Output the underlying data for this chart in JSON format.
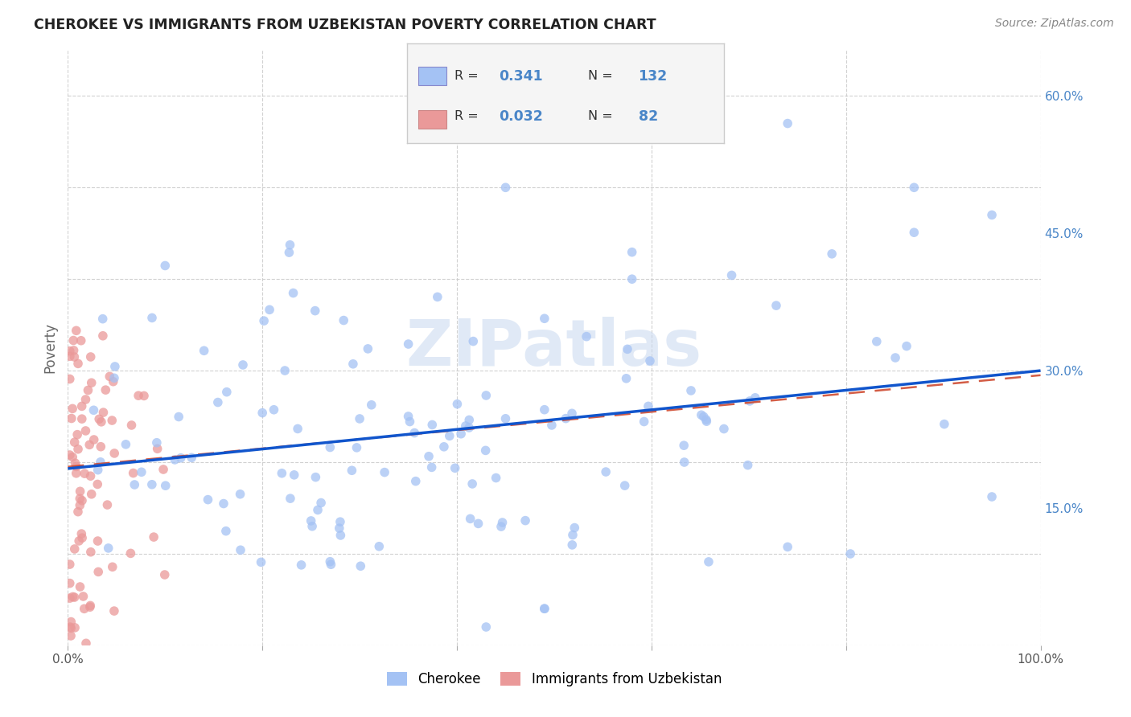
{
  "title": "CHEROKEE VS IMMIGRANTS FROM UZBEKISTAN POVERTY CORRELATION CHART",
  "source": "Source: ZipAtlas.com",
  "ylabel": "Poverty",
  "watermark": "ZIPatlas",
  "cherokee_color": "#a4c2f4",
  "uzbekistan_color": "#ea9999",
  "cherokee_line_color": "#1155cc",
  "uzbekistan_line_color": "#cc4125",
  "background_color": "#ffffff",
  "grid_color": "#cccccc",
  "xlim": [
    0.0,
    1.0
  ],
  "ylim": [
    0.0,
    0.65
  ],
  "xtick_positions": [
    0.0,
    0.2,
    0.4,
    0.6,
    0.8,
    1.0
  ],
  "xticklabels": [
    "0.0%",
    "",
    "",
    "",
    "",
    "100.0%"
  ],
  "ytick_positions": [
    0.0,
    0.15,
    0.3,
    0.45,
    0.6
  ],
  "yticklabels": [
    "",
    "15.0%",
    "30.0%",
    "45.0%",
    "60.0%"
  ],
  "cherokee_N": 132,
  "uzbekistan_N": 82,
  "cherokee_R": 0.341,
  "uzbekistan_R": 0.032,
  "legend_blue_r": "0.341",
  "legend_blue_n": "132",
  "legend_pink_r": "0.032",
  "legend_pink_n": "82",
  "cherokee_line_y0": 0.193,
  "cherokee_line_y1": 0.3,
  "uzbekistan_line_y0": 0.195,
  "uzbekistan_line_y1": 0.295
}
